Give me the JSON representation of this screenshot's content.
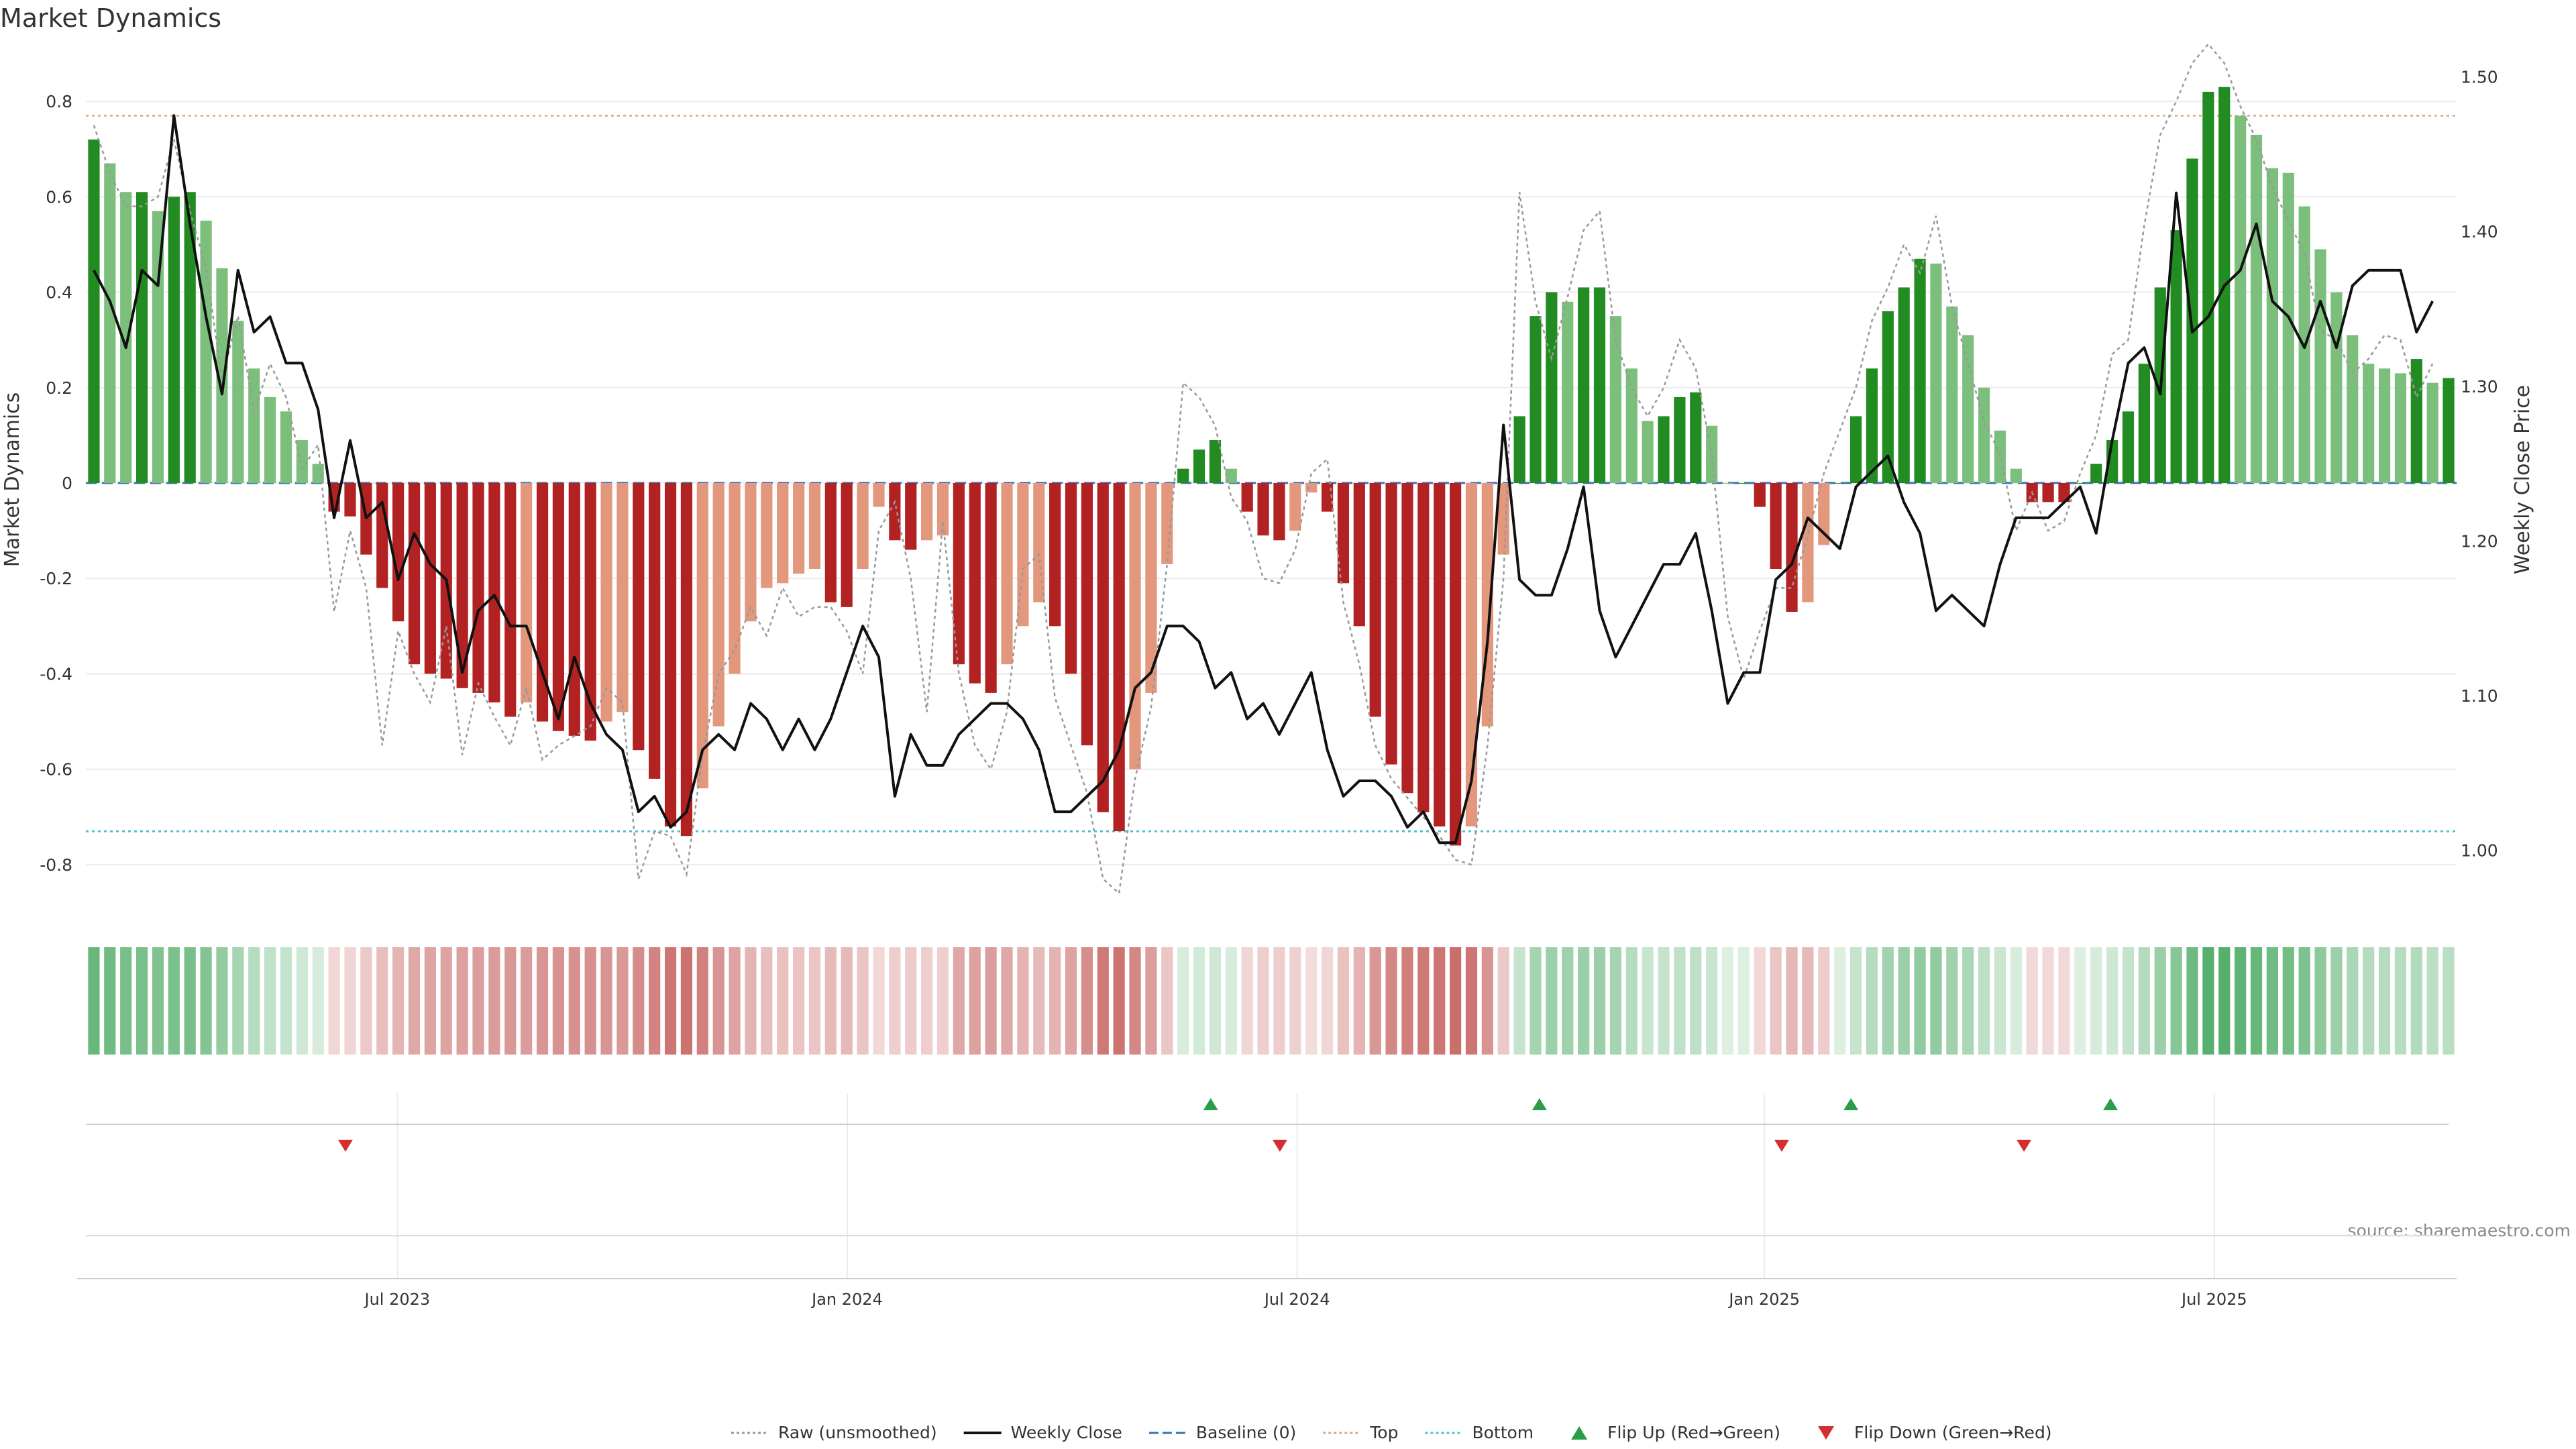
{
  "chart_data": {
    "type": "bar",
    "title": "Market Dynamics",
    "ylabel": "Market Dynamics",
    "y2label": "Weekly Close Price",
    "ylim": [
      -0.9,
      0.9
    ],
    "y2lim": [
      0.96,
      1.515
    ],
    "yticks": [
      -0.8,
      -0.6,
      -0.4,
      -0.2,
      0,
      0.2,
      0.4,
      0.6,
      0.8
    ],
    "y2ticks": [
      1.0,
      1.1,
      1.2,
      1.3,
      1.4,
      1.5
    ],
    "x_start": "2023-02-27",
    "x_end": "2025-10-13",
    "date_ticks": [
      {
        "date": "2023-07-03",
        "label": "Jul 2023"
      },
      {
        "date": "2024-01-01",
        "label": "Jan 2024"
      },
      {
        "date": "2024-07-01",
        "label": "Jul 2024"
      },
      {
        "date": "2025-01-06",
        "label": "Jan 2025"
      },
      {
        "date": "2025-07-07",
        "label": "Jul 2025"
      }
    ],
    "top_level": 0.77,
    "bottom_level": -0.73,
    "baseline": 0,
    "histogram": [
      0.72,
      0.67,
      0.61,
      0.61,
      0.57,
      0.6,
      0.61,
      0.55,
      0.45,
      0.34,
      0.24,
      0.18,
      0.15,
      0.09,
      0.04,
      -0.06,
      -0.07,
      -0.15,
      -0.22,
      -0.29,
      -0.38,
      -0.4,
      -0.41,
      -0.43,
      -0.44,
      -0.46,
      -0.49,
      -0.46,
      -0.5,
      -0.52,
      -0.53,
      -0.54,
      -0.5,
      -0.48,
      -0.56,
      -0.62,
      -0.72,
      -0.74,
      -0.64,
      -0.51,
      -0.4,
      -0.29,
      -0.22,
      -0.21,
      -0.19,
      -0.18,
      -0.25,
      -0.26,
      -0.18,
      -0.05,
      -0.12,
      -0.14,
      -0.12,
      -0.11,
      -0.38,
      -0.42,
      -0.44,
      -0.38,
      -0.3,
      -0.25,
      -0.3,
      -0.4,
      -0.55,
      -0.69,
      -0.73,
      -0.6,
      -0.44,
      -0.17,
      0.03,
      0.07,
      0.09,
      0.03,
      -0.06,
      -0.11,
      -0.12,
      -0.1,
      -0.02,
      -0.06,
      -0.21,
      -0.3,
      -0.49,
      -0.59,
      -0.65,
      -0.69,
      -0.72,
      -0.76,
      -0.72,
      -0.51,
      -0.15,
      0.14,
      0.35,
      0.4,
      0.38,
      0.41,
      0.41,
      0.35,
      0.24,
      0.13,
      0.14,
      0.18,
      0.19,
      0.12,
      0.0,
      0.0,
      -0.05,
      -0.18,
      -0.27,
      -0.25,
      -0.13,
      0.0,
      0.14,
      0.24,
      0.36,
      0.41,
      0.47,
      0.46,
      0.37,
      0.31,
      0.2,
      0.11,
      0.03,
      -0.04,
      -0.04,
      -0.04,
      0.0,
      0.04,
      0.09,
      0.15,
      0.25,
      0.41,
      0.53,
      0.68,
      0.82,
      0.83,
      0.77,
      0.73,
      0.66,
      0.65,
      0.58,
      0.49,
      0.4,
      0.31,
      0.25,
      0.24,
      0.23,
      0.26,
      0.21,
      0.22
    ],
    "series": [
      {
        "name": "Raw (unsmoothed)",
        "axis": "left",
        "values": [
          0.75,
          0.65,
          0.58,
          0.58,
          0.6,
          0.72,
          0.57,
          0.45,
          0.22,
          0.35,
          0.15,
          0.25,
          0.18,
          0.03,
          0.08,
          -0.27,
          -0.1,
          -0.22,
          -0.55,
          -0.31,
          -0.4,
          -0.46,
          -0.3,
          -0.57,
          -0.42,
          -0.49,
          -0.55,
          -0.43,
          -0.58,
          -0.55,
          -0.53,
          -0.51,
          -0.43,
          -0.46,
          -0.83,
          -0.73,
          -0.74,
          -0.82,
          -0.57,
          -0.4,
          -0.35,
          -0.26,
          -0.32,
          -0.22,
          -0.28,
          -0.26,
          -0.26,
          -0.31,
          -0.4,
          -0.1,
          -0.04,
          -0.2,
          -0.48,
          -0.08,
          -0.4,
          -0.55,
          -0.6,
          -0.48,
          -0.18,
          -0.15,
          -0.45,
          -0.55,
          -0.65,
          -0.83,
          -0.86,
          -0.62,
          -0.47,
          -0.17,
          0.21,
          0.18,
          0.12,
          -0.03,
          -0.08,
          -0.2,
          -0.21,
          -0.14,
          0.02,
          0.05,
          -0.25,
          -0.38,
          -0.55,
          -0.62,
          -0.66,
          -0.7,
          -0.74,
          -0.79,
          -0.8,
          -0.55,
          -0.2,
          0.61,
          0.38,
          0.26,
          0.39,
          0.53,
          0.57,
          0.3,
          0.2,
          0.14,
          0.2,
          0.3,
          0.24,
          0.06,
          -0.28,
          -0.41,
          -0.31,
          -0.22,
          -0.22,
          -0.11,
          0.02,
          0.11,
          0.2,
          0.34,
          0.41,
          0.5,
          0.44,
          0.56,
          0.37,
          0.25,
          0.13,
          0.06,
          -0.1,
          -0.02,
          -0.1,
          -0.08,
          0.02,
          0.1,
          0.27,
          0.3,
          0.54,
          0.73,
          0.8,
          0.88,
          0.92,
          0.88,
          0.79,
          0.72,
          0.62,
          0.55,
          0.48,
          0.32,
          0.3,
          0.23,
          0.26,
          0.31,
          0.3,
          0.18,
          0.25
        ]
      },
      {
        "name": "Weekly Close",
        "axis": "right",
        "values": [
          1.375,
          1.355,
          1.325,
          1.375,
          1.365,
          1.475,
          1.405,
          1.345,
          1.295,
          1.375,
          1.335,
          1.345,
          1.315,
          1.315,
          1.285,
          1.215,
          1.265,
          1.215,
          1.225,
          1.175,
          1.205,
          1.185,
          1.175,
          1.115,
          1.155,
          1.165,
          1.145,
          1.145,
          1.115,
          1.085,
          1.125,
          1.095,
          1.075,
          1.065,
          1.025,
          1.035,
          1.015,
          1.025,
          1.065,
          1.075,
          1.065,
          1.095,
          1.085,
          1.065,
          1.085,
          1.065,
          1.085,
          1.115,
          1.145,
          1.125,
          1.035,
          1.075,
          1.055,
          1.055,
          1.075,
          1.085,
          1.095,
          1.095,
          1.085,
          1.065,
          1.025,
          1.025,
          1.035,
          1.045,
          1.065,
          1.105,
          1.115,
          1.145,
          1.145,
          1.135,
          1.105,
          1.115,
          1.085,
          1.095,
          1.075,
          1.095,
          1.115,
          1.065,
          1.035,
          1.045,
          1.045,
          1.035,
          1.015,
          1.025,
          1.005,
          1.005,
          1.045,
          1.135,
          1.275,
          1.175,
          1.165,
          1.165,
          1.195,
          1.235,
          1.155,
          1.125,
          1.145,
          1.165,
          1.185,
          1.185,
          1.205,
          1.155,
          1.095,
          1.115,
          1.115,
          1.175,
          1.185,
          1.215,
          1.205,
          1.195,
          1.235,
          1.245,
          1.255,
          1.225,
          1.205,
          1.155,
          1.165,
          1.155,
          1.145,
          1.185,
          1.215,
          1.215,
          1.215,
          1.225,
          1.235,
          1.205,
          1.265,
          1.315,
          1.325,
          1.295,
          1.425,
          1.335,
          1.345,
          1.365,
          1.375,
          1.405,
          1.355,
          1.345,
          1.325,
          1.355,
          1.325,
          1.365,
          1.375,
          1.375,
          1.375,
          1.335,
          1.355
        ]
      }
    ],
    "flip_up_dates": [
      "2024-05-27",
      "2024-10-07",
      "2025-02-10",
      "2025-05-26"
    ],
    "flip_down_dates": [
      "2023-06-12",
      "2024-06-24",
      "2025-01-13",
      "2025-04-21"
    ],
    "legend": [
      {
        "label": "Raw (unsmoothed)",
        "style": "dotted-line",
        "color": "#999999"
      },
      {
        "label": "Weekly Close",
        "style": "line",
        "color": "#111111"
      },
      {
        "label": "Baseline (0)",
        "style": "dashed-line",
        "color": "#3a72b0"
      },
      {
        "label": "Top",
        "style": "dotted-line",
        "color": "#d9a77e"
      },
      {
        "label": "Bottom",
        "style": "dotted-line",
        "color": "#4fc2c8"
      },
      {
        "label": "Flip Up (Red→Green)",
        "style": "triangle-up",
        "color": "#2a9d4a"
      },
      {
        "label": "Flip Down (Green→Red)",
        "style": "triangle-down",
        "color": "#d32f2f"
      }
    ],
    "source": "source: sharemaestro.com",
    "colors": {
      "green_dark": "#228b22",
      "green_light": "#7cbf7c",
      "red_dark": "#b22222",
      "red_light": "#e3977c",
      "heat_green": "#3fa458",
      "heat_red": "#c0504d"
    }
  }
}
